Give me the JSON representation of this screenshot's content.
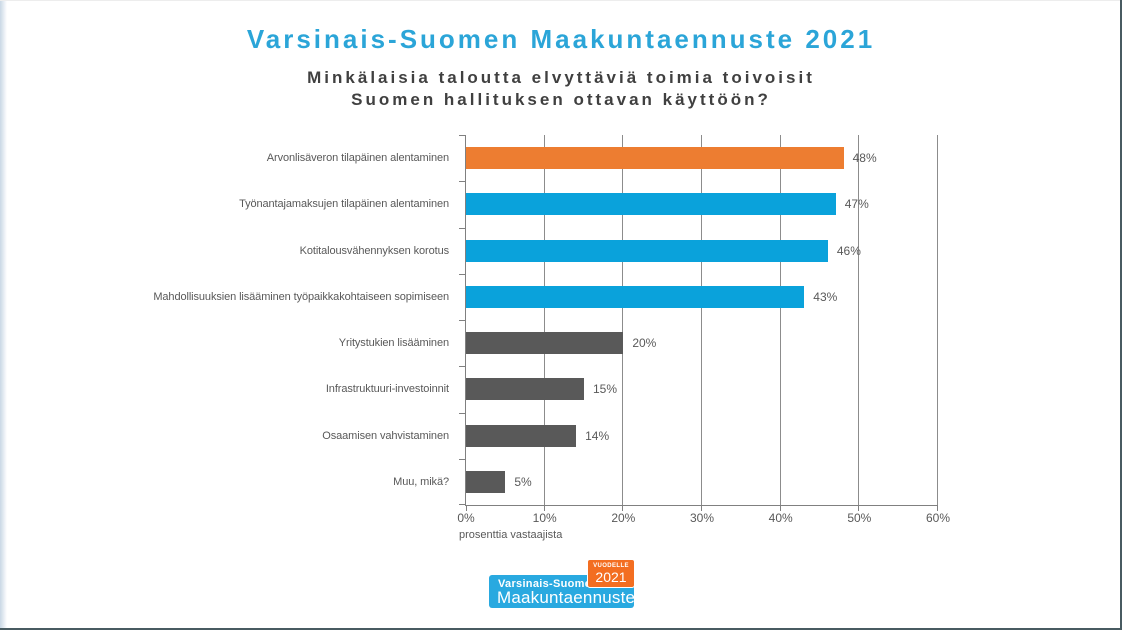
{
  "slide": {
    "title": "Varsinais-Suomen Maakuntaennuste 2021",
    "title_color": "#2BA5D8",
    "subtitle_line1": "Minkälaisia taloutta elvyttäviä toimia toivoisit",
    "subtitle_line2": "Suomen hallituksen ottavan käyttöön?"
  },
  "chart_data": {
    "type": "bar",
    "orientation": "horizontal",
    "title": "Minkälaisia taloutta elvyttäviä toimia toivoisit Suomen hallituksen ottavan käyttöön?",
    "categories": [
      "Arvonlisäveron tilapäinen alentaminen",
      "Työnantajamaksujen tilapäinen alentaminen",
      "Kotitalousvähennyksen korotus",
      "Mahdollisuuksien lisääminen työpaikkakohtaiseen sopimiseen",
      "Yritystukien lisääminen",
      "Infrastruktuuri-investoinnit",
      "Osaamisen vahvistaminen",
      "Muu, mikä?"
    ],
    "values": [
      48,
      47,
      46,
      43,
      20,
      15,
      14,
      5
    ],
    "value_labels": [
      "48%",
      "47%",
      "46%",
      "43%",
      "20%",
      "15%",
      "14%",
      "5%"
    ],
    "bar_colors": [
      "#ED7D31",
      "#0AA2DB",
      "#0AA2DB",
      "#0AA2DB",
      "#595959",
      "#595959",
      "#595959",
      "#595959"
    ],
    "xlabel": "prosenttia vastaajista",
    "xlim": [
      0,
      60
    ],
    "xtick_values": [
      0,
      10,
      20,
      30,
      40,
      50,
      60
    ],
    "xtick_labels": [
      "0%",
      "10%",
      "20%",
      "30%",
      "40%",
      "50%",
      "60%"
    ],
    "grid": true,
    "legend": false
  },
  "logo": {
    "region": "Varsinais-Suomen",
    "product": "Maakuntaennuste",
    "badge_label": "VUODELLE",
    "badge_year": "2021",
    "blue": "#29A9E0",
    "orange": "#F36E21"
  },
  "colors": {
    "axis": "#808080",
    "gridline": "#8C8C8C",
    "label_text": "#595959",
    "subtitle_text": "#404040"
  }
}
